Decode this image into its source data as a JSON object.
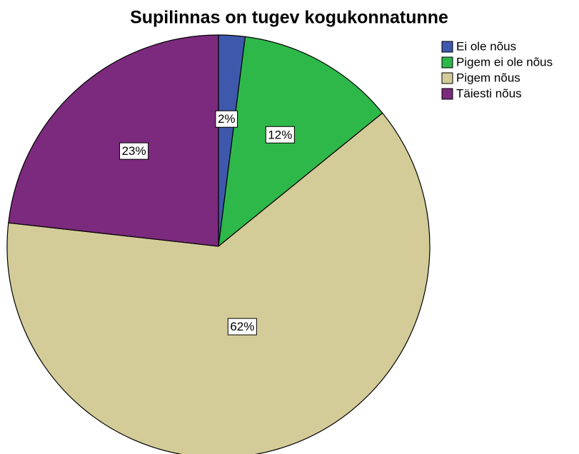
{
  "chart_data": {
    "type": "pie",
    "title": "Supilinnas on tugev kogukonnatunne",
    "categories": [
      "Ei ole nõus",
      "Pigem ei ole nõus",
      "Pigem nõus",
      "Täiesti nõus"
    ],
    "values": [
      2,
      12,
      62,
      23
    ],
    "value_labels": [
      "2%",
      "12%",
      "62%",
      "23%"
    ],
    "colors": [
      "#3e58ac",
      "#2fb84a",
      "#d4cc98",
      "#7b2a7d"
    ],
    "legend": "upper right"
  }
}
